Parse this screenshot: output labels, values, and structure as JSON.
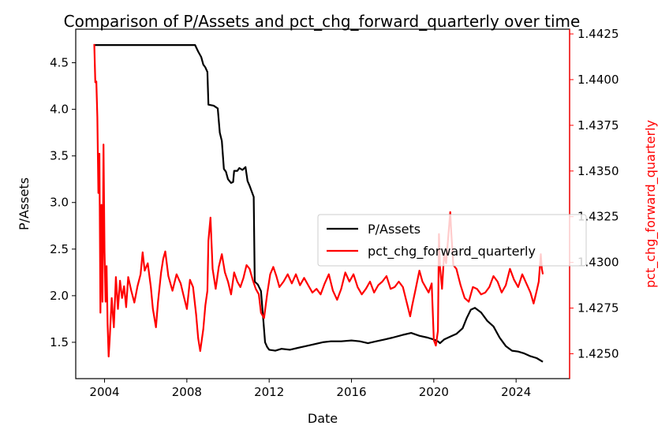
{
  "chart_data": {
    "type": "line",
    "title": "Comparison of P/Assets and pct_chg_forward_quarterly over time",
    "xlabel": "Date",
    "ylabel": "P/Assets",
    "y2label": "pct_chg_forward_quarterly",
    "xlim": [
      2002.6,
      2026.6
    ],
    "ylim": [
      1.11,
      4.86
    ],
    "y2lim": [
      1.42364,
      1.44276
    ],
    "xticks": [
      2004,
      2008,
      2012,
      2016,
      2020,
      2024
    ],
    "xtick_labels": [
      "2004",
      "2008",
      "2012",
      "2016",
      "2020",
      "2024"
    ],
    "yticks": [
      1.5,
      2.0,
      2.5,
      3.0,
      3.5,
      4.0,
      4.5
    ],
    "ytick_labels": [
      "1.5",
      "2.0",
      "2.5",
      "3.0",
      "3.5",
      "4.0",
      "4.5"
    ],
    "y2ticks": [
      1.425,
      1.4275,
      1.43,
      1.4325,
      1.435,
      1.4375,
      1.44,
      1.4425
    ],
    "y2tick_labels": [
      "1.4250",
      "1.4275",
      "1.4300",
      "1.4325",
      "1.4350",
      "1.4375",
      "1.4400",
      "1.4425"
    ],
    "legend_position": "center-right",
    "grid": false,
    "series": [
      {
        "name": "P/Assets",
        "color": "#000000",
        "axis": "left",
        "points": [
          [
            2003.5,
            4.69
          ],
          [
            2005.0,
            4.69
          ],
          [
            2006.5,
            4.69
          ],
          [
            2008.0,
            4.69
          ],
          [
            2008.4,
            4.69
          ],
          [
            2008.55,
            4.62
          ],
          [
            2008.7,
            4.56
          ],
          [
            2008.8,
            4.48
          ],
          [
            2008.9,
            4.45
          ],
          [
            2009.0,
            4.4
          ],
          [
            2009.05,
            4.05
          ],
          [
            2009.3,
            4.04
          ],
          [
            2009.5,
            4.01
          ],
          [
            2009.6,
            3.75
          ],
          [
            2009.7,
            3.66
          ],
          [
            2009.8,
            3.36
          ],
          [
            2009.9,
            3.33
          ],
          [
            2010.0,
            3.25
          ],
          [
            2010.15,
            3.21
          ],
          [
            2010.25,
            3.22
          ],
          [
            2010.3,
            3.34
          ],
          [
            2010.45,
            3.34
          ],
          [
            2010.55,
            3.37
          ],
          [
            2010.7,
            3.35
          ],
          [
            2010.85,
            3.38
          ],
          [
            2010.95,
            3.23
          ],
          [
            2011.05,
            3.18
          ],
          [
            2011.15,
            3.12
          ],
          [
            2011.25,
            3.06
          ],
          [
            2011.3,
            2.15
          ],
          [
            2011.45,
            2.12
          ],
          [
            2011.6,
            2.05
          ],
          [
            2011.7,
            1.78
          ],
          [
            2011.8,
            1.5
          ],
          [
            2011.9,
            1.45
          ],
          [
            2012.0,
            1.42
          ],
          [
            2012.3,
            1.41
          ],
          [
            2012.6,
            1.43
          ],
          [
            2013.0,
            1.42
          ],
          [
            2013.4,
            1.44
          ],
          [
            2013.8,
            1.46
          ],
          [
            2014.2,
            1.48
          ],
          [
            2014.6,
            1.5
          ],
          [
            2015.0,
            1.51
          ],
          [
            2015.5,
            1.51
          ],
          [
            2016.0,
            1.52
          ],
          [
            2016.4,
            1.51
          ],
          [
            2016.8,
            1.49
          ],
          [
            2017.2,
            1.51
          ],
          [
            2017.6,
            1.53
          ],
          [
            2018.0,
            1.55
          ],
          [
            2018.5,
            1.58
          ],
          [
            2018.9,
            1.6
          ],
          [
            2019.3,
            1.57
          ],
          [
            2019.7,
            1.55
          ],
          [
            2020.0,
            1.53
          ],
          [
            2020.2,
            1.51
          ],
          [
            2020.3,
            1.49
          ],
          [
            2020.5,
            1.53
          ],
          [
            2020.8,
            1.56
          ],
          [
            2021.1,
            1.59
          ],
          [
            2021.4,
            1.65
          ],
          [
            2021.6,
            1.76
          ],
          [
            2021.8,
            1.85
          ],
          [
            2022.0,
            1.87
          ],
          [
            2022.3,
            1.82
          ],
          [
            2022.6,
            1.73
          ],
          [
            2022.9,
            1.67
          ],
          [
            2023.2,
            1.55
          ],
          [
            2023.5,
            1.46
          ],
          [
            2023.8,
            1.41
          ],
          [
            2024.1,
            1.4
          ],
          [
            2024.4,
            1.38
          ],
          [
            2024.7,
            1.35
          ],
          [
            2025.0,
            1.33
          ],
          [
            2025.3,
            1.29
          ]
        ]
      },
      {
        "name": "pct_chg_forward_quarterly",
        "color": "#ff0000",
        "axis": "right",
        "points": [
          [
            2003.5,
            1.44195
          ],
          [
            2003.55,
            1.43985
          ],
          [
            2003.6,
            1.4399
          ],
          [
            2003.65,
            1.43795
          ],
          [
            2003.7,
            1.4338
          ],
          [
            2003.75,
            1.43595
          ],
          [
            2003.8,
            1.42725
          ],
          [
            2003.85,
            1.43315
          ],
          [
            2003.9,
            1.42785
          ],
          [
            2003.95,
            1.43645
          ],
          [
            2004.0,
            1.4306
          ],
          [
            2004.05,
            1.42785
          ],
          [
            2004.1,
            1.4298
          ],
          [
            2004.15,
            1.4266
          ],
          [
            2004.2,
            1.42485
          ],
          [
            2004.25,
            1.42575
          ],
          [
            2004.35,
            1.42805
          ],
          [
            2004.45,
            1.42645
          ],
          [
            2004.55,
            1.4292
          ],
          [
            2004.65,
            1.42745
          ],
          [
            2004.75,
            1.429
          ],
          [
            2004.85,
            1.42805
          ],
          [
            2004.95,
            1.4287
          ],
          [
            2005.05,
            1.42755
          ],
          [
            2005.15,
            1.4292
          ],
          [
            2005.3,
            1.42845
          ],
          [
            2005.45,
            1.4278
          ],
          [
            2005.6,
            1.4287
          ],
          [
            2005.75,
            1.42935
          ],
          [
            2005.85,
            1.43055
          ],
          [
            2005.95,
            1.42955
          ],
          [
            2006.1,
            1.42995
          ],
          [
            2006.25,
            1.42865
          ],
          [
            2006.35,
            1.42745
          ],
          [
            2006.5,
            1.42645
          ],
          [
            2006.6,
            1.42785
          ],
          [
            2006.75,
            1.42945
          ],
          [
            2006.85,
            1.4302
          ],
          [
            2006.95,
            1.4306
          ],
          [
            2007.1,
            1.42925
          ],
          [
            2007.3,
            1.42845
          ],
          [
            2007.5,
            1.42935
          ],
          [
            2007.7,
            1.42885
          ],
          [
            2007.85,
            1.42815
          ],
          [
            2008.0,
            1.42745
          ],
          [
            2008.15,
            1.42905
          ],
          [
            2008.3,
            1.42865
          ],
          [
            2008.45,
            1.42715
          ],
          [
            2008.55,
            1.42585
          ],
          [
            2008.65,
            1.42515
          ],
          [
            2008.8,
            1.42635
          ],
          [
            2008.9,
            1.42765
          ],
          [
            2009.0,
            1.42845
          ],
          [
            2009.05,
            1.4312
          ],
          [
            2009.15,
            1.43245
          ],
          [
            2009.25,
            1.42965
          ],
          [
            2009.4,
            1.42855
          ],
          [
            2009.55,
            1.42975
          ],
          [
            2009.7,
            1.43045
          ],
          [
            2009.85,
            1.42945
          ],
          [
            2010.0,
            1.42895
          ],
          [
            2010.15,
            1.42825
          ],
          [
            2010.3,
            1.42945
          ],
          [
            2010.45,
            1.42895
          ],
          [
            2010.6,
            1.42865
          ],
          [
            2010.75,
            1.42915
          ],
          [
            2010.9,
            1.42985
          ],
          [
            2011.05,
            1.42965
          ],
          [
            2011.2,
            1.42905
          ],
          [
            2011.35,
            1.42855
          ],
          [
            2011.5,
            1.42825
          ],
          [
            2011.6,
            1.42725
          ],
          [
            2011.75,
            1.42695
          ],
          [
            2011.9,
            1.42825
          ],
          [
            2012.05,
            1.42935
          ],
          [
            2012.2,
            1.42975
          ],
          [
            2012.35,
            1.42925
          ],
          [
            2012.5,
            1.42865
          ],
          [
            2012.7,
            1.42895
          ],
          [
            2012.9,
            1.42935
          ],
          [
            2013.1,
            1.42885
          ],
          [
            2013.3,
            1.42935
          ],
          [
            2013.5,
            1.42875
          ],
          [
            2013.7,
            1.42915
          ],
          [
            2013.9,
            1.42875
          ],
          [
            2014.1,
            1.42835
          ],
          [
            2014.3,
            1.42855
          ],
          [
            2014.5,
            1.42825
          ],
          [
            2014.7,
            1.42885
          ],
          [
            2014.9,
            1.42935
          ],
          [
            2015.1,
            1.42845
          ],
          [
            2015.3,
            1.42795
          ],
          [
            2015.5,
            1.42855
          ],
          [
            2015.7,
            1.42945
          ],
          [
            2015.9,
            1.42895
          ],
          [
            2016.1,
            1.42935
          ],
          [
            2016.3,
            1.42865
          ],
          [
            2016.5,
            1.42825
          ],
          [
            2016.7,
            1.42855
          ],
          [
            2016.9,
            1.42895
          ],
          [
            2017.1,
            1.42835
          ],
          [
            2017.3,
            1.42875
          ],
          [
            2017.5,
            1.42895
          ],
          [
            2017.7,
            1.42925
          ],
          [
            2017.9,
            1.42855
          ],
          [
            2018.1,
            1.42865
          ],
          [
            2018.3,
            1.42895
          ],
          [
            2018.5,
            1.42865
          ],
          [
            2018.7,
            1.42775
          ],
          [
            2018.85,
            1.42705
          ],
          [
            2018.95,
            1.42765
          ],
          [
            2019.1,
            1.42845
          ],
          [
            2019.3,
            1.42955
          ],
          [
            2019.45,
            1.42895
          ],
          [
            2019.6,
            1.42865
          ],
          [
            2019.75,
            1.42835
          ],
          [
            2019.9,
            1.42885
          ],
          [
            2020.0,
            1.42575
          ],
          [
            2020.1,
            1.42545
          ],
          [
            2020.2,
            1.42625
          ],
          [
            2020.25,
            1.43155
          ],
          [
            2020.3,
            1.42975
          ],
          [
            2020.4,
            1.42855
          ],
          [
            2020.5,
            1.43045
          ],
          [
            2020.6,
            1.42995
          ],
          [
            2020.7,
            1.43135
          ],
          [
            2020.8,
            1.43275
          ],
          [
            2020.85,
            1.43165
          ],
          [
            2020.95,
            1.42985
          ],
          [
            2021.1,
            1.42965
          ],
          [
            2021.3,
            1.42875
          ],
          [
            2021.5,
            1.42805
          ],
          [
            2021.7,
            1.42785
          ],
          [
            2021.9,
            1.42865
          ],
          [
            2022.1,
            1.42855
          ],
          [
            2022.3,
            1.42825
          ],
          [
            2022.5,
            1.42835
          ],
          [
            2022.7,
            1.42865
          ],
          [
            2022.9,
            1.42925
          ],
          [
            2023.1,
            1.42895
          ],
          [
            2023.3,
            1.42835
          ],
          [
            2023.5,
            1.42875
          ],
          [
            2023.7,
            1.42965
          ],
          [
            2023.9,
            1.42905
          ],
          [
            2024.1,
            1.42865
          ],
          [
            2024.3,
            1.42935
          ],
          [
            2024.5,
            1.42885
          ],
          [
            2024.7,
            1.42835
          ],
          [
            2024.85,
            1.42775
          ],
          [
            2025.0,
            1.42845
          ],
          [
            2025.1,
            1.42895
          ],
          [
            2025.2,
            1.43045
          ],
          [
            2025.25,
            1.42965
          ],
          [
            2025.3,
            1.42935
          ]
        ]
      }
    ]
  }
}
